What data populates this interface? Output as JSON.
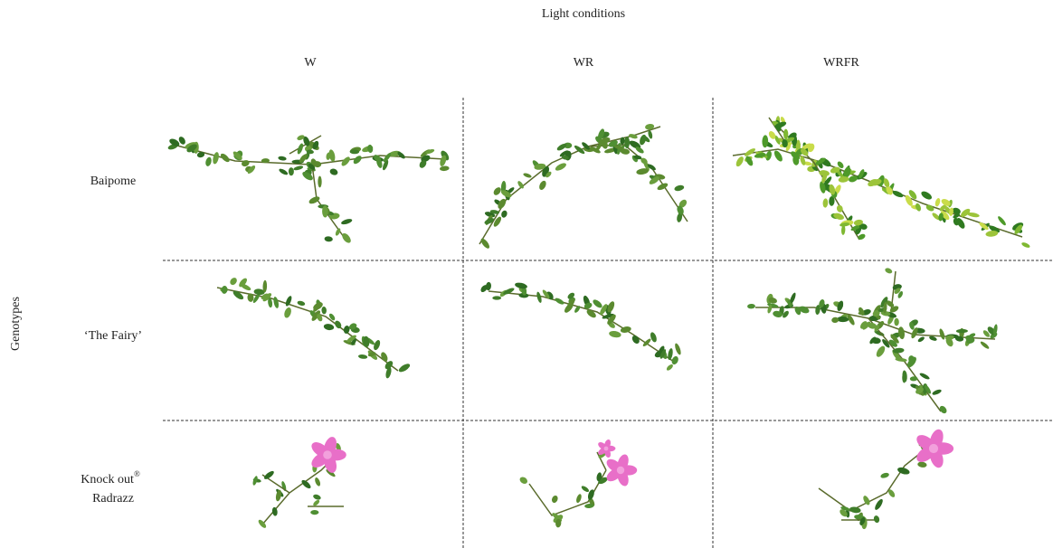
{
  "header": {
    "title": "Light conditions"
  },
  "columns": [
    "W",
    "WR",
    "WRFR"
  ],
  "row_axis_label": "Genotypes",
  "rows": [
    {
      "label": "Baipome"
    },
    {
      "label": "‘The Fairy’"
    },
    {
      "label_parts": [
        "Knock out",
        "®",
        "Radrazz"
      ]
    }
  ]
}
